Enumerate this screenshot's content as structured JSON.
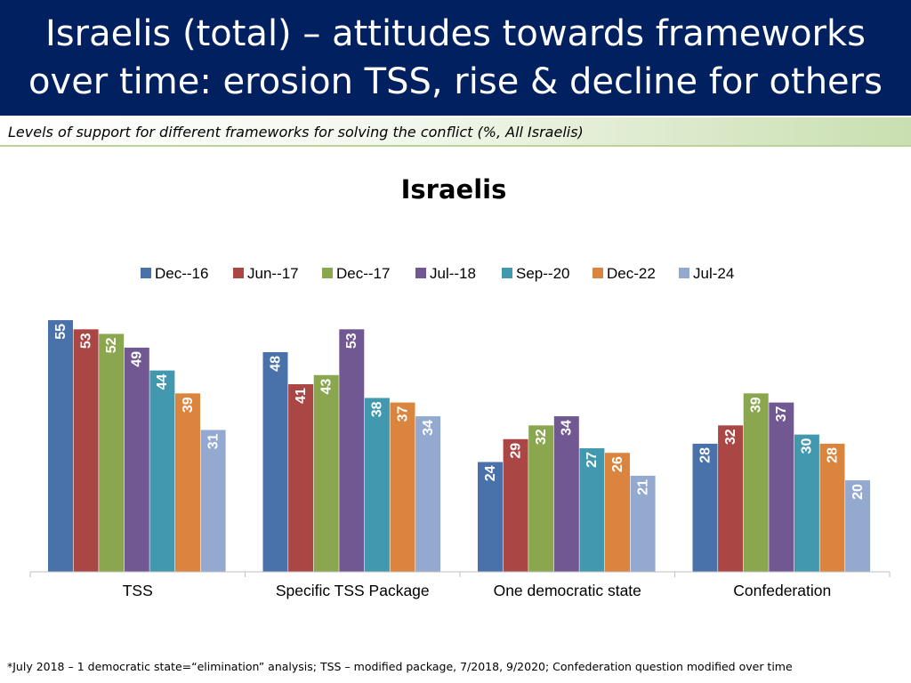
{
  "header": {
    "title_line1": "Israelis (total) – attitudes towards frameworks",
    "title_line2": "over time: erosion TSS, rise & decline for others"
  },
  "subtitle": "Levels of support for different frameworks for solving the conflict (%, All Israelis)",
  "footnote": "*July 2018 – 1 democratic state=“elimination” analysis; TSS – modified package, 7/2018, 9/2020; Confederation question modified over time",
  "colors": [
    "#4a72aa",
    "#aa4644",
    "#8aa64e",
    "#715892",
    "#4198af",
    "#db843d",
    "#93a9cf"
  ],
  "chart_data": {
    "type": "bar",
    "title": "Israelis",
    "xlabel": "",
    "ylabel": "",
    "ylim": [
      0,
      55
    ],
    "grid": false,
    "legend_position": "top",
    "categories": [
      "TSS",
      "Specific TSS Package",
      "One democratic state",
      "Confederation"
    ],
    "series": [
      {
        "name": "Dec--16",
        "values": [
          55,
          48,
          24,
          28
        ]
      },
      {
        "name": "Jun--17",
        "values": [
          53,
          41,
          29,
          32
        ]
      },
      {
        "name": "Dec--17",
        "values": [
          52,
          43,
          32,
          39
        ]
      },
      {
        "name": "Jul--18",
        "values": [
          49,
          53,
          34,
          37
        ]
      },
      {
        "name": "Sep--20",
        "values": [
          44,
          38,
          27,
          30
        ]
      },
      {
        "name": "Dec-22",
        "values": [
          39,
          37,
          26,
          28
        ]
      },
      {
        "name": "Jul-24",
        "values": [
          31,
          34,
          21,
          20
        ]
      }
    ]
  }
}
